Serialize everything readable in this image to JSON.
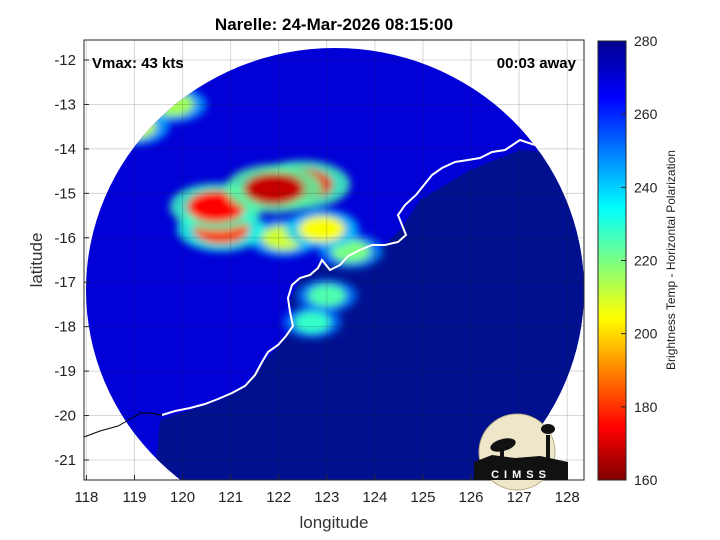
{
  "chart_data": {
    "type": "heatmap",
    "title": "Narelle: 24-Mar-2026 08:15:00",
    "xlabel": "longitude",
    "ylabel": "latitude",
    "xlim": [
      117.95,
      128.35
    ],
    "ylim": [
      -21.45,
      -11.55
    ],
    "x_ticks": [
      118,
      119,
      120,
      121,
      122,
      123,
      124,
      125,
      126,
      127,
      128
    ],
    "y_ticks": [
      -12,
      -13,
      -14,
      -15,
      -16,
      -17,
      -18,
      -19,
      -20,
      -21
    ],
    "grid": true,
    "annotations": {
      "vmax": "Vmax: 43 kts",
      "away": "00:03 away"
    },
    "colorbar": {
      "label": "Brightness Temp - Horizontal Polarization",
      "range": [
        160,
        280
      ],
      "ticks": [
        160,
        180,
        200,
        220,
        240,
        260,
        280
      ],
      "colormap": [
        "#7f0000",
        "#ff0000",
        "#ffff00",
        "#00ffff",
        "#0000ff",
        "#00008f"
      ]
    },
    "swath_background_value": 270,
    "features": [
      {
        "lon": 121.9,
        "lat": -14.9,
        "value": 168
      },
      {
        "lon": 122.5,
        "lat": -14.8,
        "value": 172
      },
      {
        "lon": 120.7,
        "lat": -15.3,
        "value": 175
      },
      {
        "lon": 120.8,
        "lat": -15.8,
        "value": 182
      },
      {
        "lon": 122.9,
        "lat": -15.8,
        "value": 205
      },
      {
        "lon": 122.1,
        "lat": -16.0,
        "value": 210
      },
      {
        "lon": 119.8,
        "lat": -13.0,
        "value": 215
      },
      {
        "lon": 119.0,
        "lat": -13.5,
        "value": 212
      },
      {
        "lon": 123.5,
        "lat": -16.3,
        "value": 220
      },
      {
        "lon": 123.0,
        "lat": -17.3,
        "value": 225
      },
      {
        "lon": 122.7,
        "lat": -17.9,
        "value": 228
      }
    ],
    "logo": "CIMSS"
  }
}
